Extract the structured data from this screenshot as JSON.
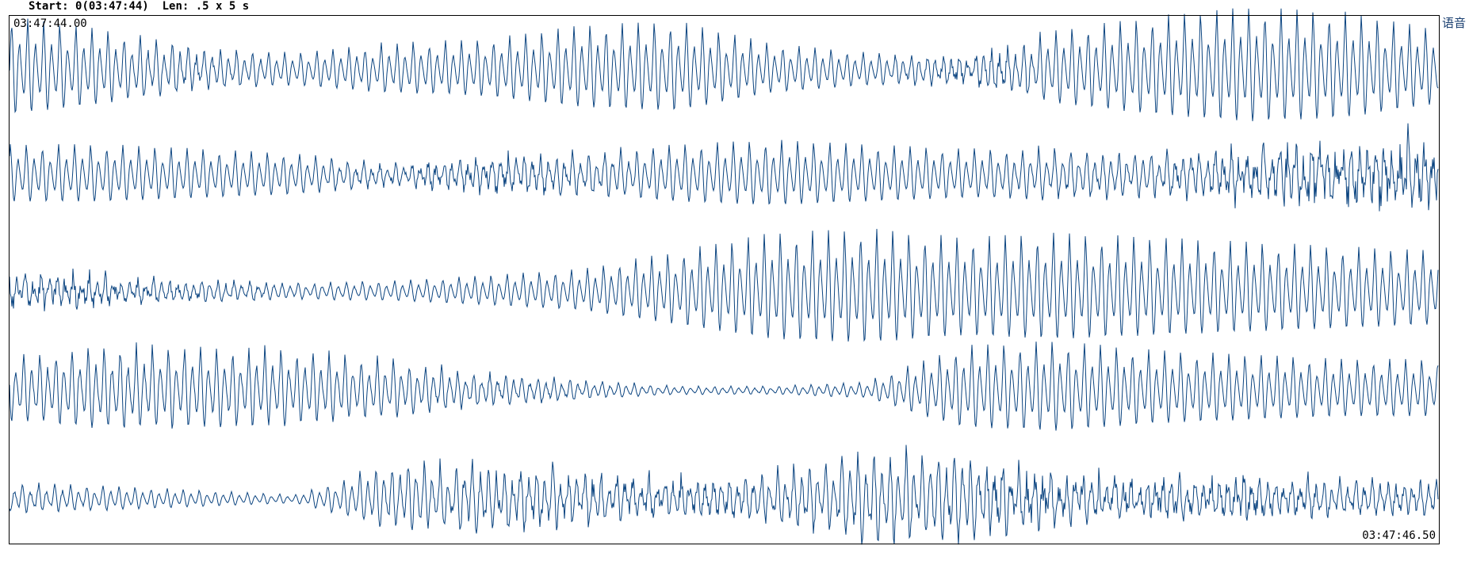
{
  "header": {
    "start_label": "Start:",
    "start_value": "0(03:47:44)",
    "len_label": "Len:",
    "len_value": ".5 x 5 s"
  },
  "plot": {
    "time_start": "03:47:44.00",
    "time_end": "03:47:46.50",
    "channel_label": "语音",
    "trace_color": "#0b4480",
    "rows": 5
  }
}
